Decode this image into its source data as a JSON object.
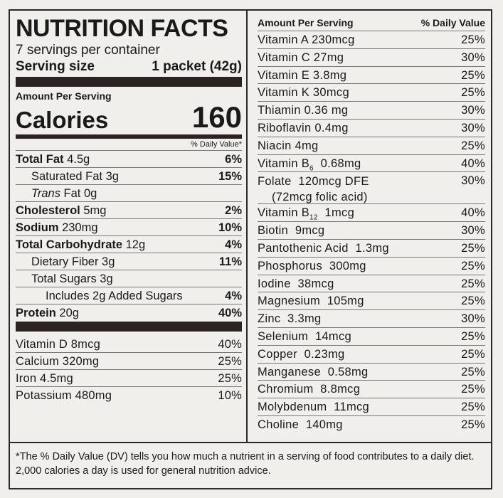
{
  "label": {
    "title": "NUTRITION FACTS",
    "servings": "7 servings per container",
    "serving_size_label": "Serving size",
    "serving_size_value": "1 packet (42g)",
    "amount_per_serving": "Amount Per Serving",
    "calories_label": "Calories",
    "calories_value": "160",
    "dv_header": "% Daily Value*"
  },
  "left_nutrients": [
    {
      "name": "Total Fat",
      "amount": " 4.5g",
      "dv": "6%"
    },
    {
      "name": "Saturated Fat",
      "amount": " 3g",
      "dv": "15%"
    },
    {
      "name": "Trans",
      "amount": " Fat 0g",
      "dv": ""
    },
    {
      "name": "Cholesterol",
      "amount": " 5mg",
      "dv": "2%"
    },
    {
      "name": "Sodium",
      "amount": " 230mg",
      "dv": "10%"
    },
    {
      "name": "Total Carbohydrate",
      "amount": " 12g",
      "dv": "4%"
    },
    {
      "name": "Dietary Fiber",
      "amount": " 3g",
      "dv": "11%"
    },
    {
      "name": "Total Sugars",
      "amount": " 3g",
      "dv": ""
    },
    {
      "name": "Includes 2g Added Sugars",
      "amount": "",
      "dv": "4%"
    },
    {
      "name": "Protein",
      "amount": " 20g",
      "dv": "40%"
    }
  ],
  "left_vitamins": [
    {
      "text": "Vitamin D 8mcg",
      "dv": "40%"
    },
    {
      "text": "Calcium 320mg",
      "dv": "25%"
    },
    {
      "text": "Iron 4.5mg",
      "dv": "25%"
    },
    {
      "text": "Potassium 480mg",
      "dv": "10%"
    }
  ],
  "right_header": {
    "left": "Amount Per Serving",
    "right": "% Daily Value"
  },
  "right_vitamins": [
    {
      "text": "Vitamin A  230mcg",
      "dv": "25%"
    },
    {
      "text": "Vitamin C  27mg",
      "dv": "30%"
    },
    {
      "text": "Vitamin E  3.8mg",
      "dv": "25%"
    },
    {
      "text": "Vitamin K  30mcg",
      "dv": "25%"
    },
    {
      "text": "Thiamin  0.36 mg",
      "dv": "30%"
    },
    {
      "text": "Riboflavin  0.4mg",
      "dv": "30%"
    },
    {
      "text": "Niacin  4mg",
      "dv": "25%"
    },
    {
      "text_main": "Vitamin B",
      "text_sub": "6",
      "text_rest": "  0.68mg",
      "dv": "40%"
    },
    {
      "text": "Folate  120mcg DFE",
      "text2": "(72mcg folic acid)",
      "dv": "30%"
    },
    {
      "text_main": "Vitamin B",
      "text_sub": "12",
      "text_rest": "  1mcg",
      "dv": "40%"
    },
    {
      "text": "Biotin  9mcg",
      "dv": "30%"
    },
    {
      "text": "Pantothenic Acid  1.3mg",
      "dv": "25%"
    },
    {
      "text": "Phosphorus  300mg",
      "dv": "25%"
    },
    {
      "text": "Iodine  38mcg",
      "dv": "25%"
    },
    {
      "text": "Magnesium  105mg",
      "dv": "25%"
    },
    {
      "text": "Zinc  3.3mg",
      "dv": "30%"
    },
    {
      "text": "Selenium  14mcg",
      "dv": "25%"
    },
    {
      "text": "Copper  0.23mg",
      "dv": "25%"
    },
    {
      "text": "Manganese  0.58mg",
      "dv": "25%"
    },
    {
      "text": "Chromium  8.8mcg",
      "dv": "25%"
    },
    {
      "text": "Molybdenum  11mcg",
      "dv": "25%"
    },
    {
      "text": "Choline  140mg",
      "dv": "25%"
    }
  ],
  "footnote": "*The % Daily Value (DV) tells you how much a nutrient in a serving of food contributes to a daily diet. 2,000 calories a day is used for general nutrition advice."
}
